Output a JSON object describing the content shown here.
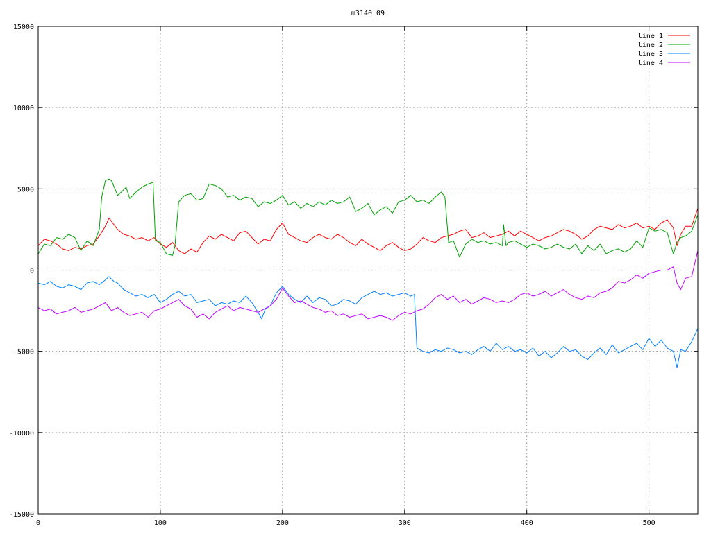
{
  "chart_data": {
    "type": "line",
    "title": "m3140_09",
    "xlabel": "",
    "ylabel": "",
    "xlim": [
      0,
      540
    ],
    "ylim": [
      -15000,
      15000
    ],
    "x_ticks": [
      0,
      100,
      200,
      300,
      400,
      500
    ],
    "y_ticks": [
      -15000,
      -10000,
      -5000,
      0,
      5000,
      10000,
      15000
    ],
    "x_tick_labels": [
      "0",
      "100",
      "200",
      "300",
      "400",
      "500"
    ],
    "y_tick_labels": [
      "-15000",
      "-10000",
      "-5000",
      "0",
      "5000",
      "10000",
      "15000"
    ],
    "grid": true,
    "legend_position": "top-right",
    "series": [
      {
        "name": "line 1",
        "color": "#ff0000",
        "x": [
          0,
          5,
          10,
          15,
          20,
          25,
          30,
          35,
          40,
          45,
          50,
          55,
          58,
          62,
          65,
          70,
          75,
          80,
          85,
          90,
          95,
          100,
          105,
          110,
          115,
          120,
          125,
          130,
          135,
          140,
          145,
          150,
          155,
          160,
          165,
          170,
          175,
          180,
          185,
          190,
          195,
          200,
          205,
          210,
          215,
          220,
          225,
          230,
          235,
          240,
          245,
          250,
          255,
          260,
          265,
          270,
          275,
          280,
          285,
          290,
          295,
          300,
          305,
          310,
          315,
          320,
          325,
          330,
          335,
          340,
          345,
          350,
          355,
          360,
          365,
          370,
          375,
          380,
          385,
          390,
          395,
          400,
          405,
          410,
          415,
          420,
          425,
          430,
          435,
          440,
          445,
          450,
          455,
          460,
          465,
          470,
          475,
          480,
          485,
          490,
          495,
          500,
          505,
          510,
          515,
          520,
          523,
          526,
          530,
          535,
          540
        ],
        "y": [
          1500,
          1900,
          1800,
          1600,
          1300,
          1200,
          1400,
          1300,
          1500,
          1600,
          2100,
          2700,
          3200,
          2800,
          2500,
          2200,
          2100,
          1900,
          2000,
          1800,
          2000,
          1600,
          1400,
          1700,
          1200,
          1000,
          1300,
          1100,
          1700,
          2100,
          1900,
          2200,
          2000,
          1800,
          2300,
          2400,
          2000,
          1600,
          1900,
          1800,
          2500,
          2900,
          2200,
          2000,
          1800,
          1700,
          2000,
          2200,
          2000,
          1900,
          2200,
          2000,
          1700,
          1500,
          1900,
          1600,
          1400,
          1200,
          1500,
          1700,
          1400,
          1200,
          1300,
          1600,
          2000,
          1800,
          1700,
          2000,
          2100,
          2200,
          2400,
          2500,
          2000,
          2100,
          2300,
          2000,
          2100,
          2200,
          2400,
          2100,
          2400,
          2200,
          2000,
          1800,
          2000,
          2100,
          2300,
          2500,
          2400,
          2200,
          1900,
          2100,
          2500,
          2700,
          2600,
          2500,
          2800,
          2600,
          2700,
          2900,
          2600,
          2700,
          2500,
          2900,
          3100,
          2600,
          1500,
          2200,
          2700,
          2700,
          3800
        ]
      },
      {
        "name": "line 2",
        "color": "#00a000",
        "x": [
          0,
          5,
          10,
          15,
          20,
          25,
          30,
          35,
          40,
          45,
          50,
          52,
          55,
          58,
          60,
          65,
          68,
          72,
          75,
          80,
          85,
          90,
          94,
          96,
          100,
          105,
          110,
          112,
          115,
          120,
          125,
          130,
          135,
          140,
          145,
          150,
          155,
          160,
          165,
          170,
          175,
          180,
          185,
          190,
          195,
          200,
          205,
          210,
          215,
          220,
          225,
          230,
          235,
          240,
          245,
          250,
          255,
          260,
          265,
          270,
          275,
          280,
          285,
          290,
          295,
          300,
          305,
          310,
          315,
          320,
          325,
          330,
          333,
          336,
          340,
          345,
          350,
          355,
          360,
          365,
          370,
          375,
          380,
          381,
          383,
          385,
          390,
          395,
          400,
          405,
          410,
          415,
          420,
          425,
          430,
          435,
          440,
          445,
          450,
          455,
          460,
          465,
          470,
          475,
          480,
          485,
          490,
          495,
          500,
          505,
          510,
          515,
          520,
          523,
          526,
          530,
          535,
          540
        ],
        "y": [
          1000,
          1600,
          1500,
          2000,
          1900,
          2200,
          2000,
          1200,
          1800,
          1500,
          2500,
          4500,
          5500,
          5600,
          5500,
          4600,
          4800,
          5100,
          4400,
          4800,
          5100,
          5300,
          5400,
          1800,
          1700,
          1000,
          900,
          1500,
          4200,
          4600,
          4700,
          4300,
          4400,
          5300,
          5200,
          5000,
          4500,
          4600,
          4300,
          4500,
          4400,
          3900,
          4200,
          4100,
          4300,
          4600,
          4000,
          4200,
          3800,
          4100,
          3900,
          4200,
          4000,
          4300,
          4100,
          4200,
          4500,
          3600,
          3800,
          4100,
          3400,
          3700,
          3900,
          3500,
          4200,
          4300,
          4600,
          4200,
          4300,
          4100,
          4500,
          4800,
          4500,
          1700,
          1800,
          800,
          1600,
          1900,
          1700,
          1800,
          1600,
          1700,
          1500,
          2800,
          1500,
          1700,
          1800,
          1600,
          1400,
          1600,
          1500,
          1300,
          1400,
          1600,
          1400,
          1300,
          1600,
          1000,
          1500,
          1200,
          1600,
          1000,
          1200,
          1300,
          1100,
          1300,
          1800,
          1400,
          2600,
          2400,
          2500,
          2300,
          1000,
          1700,
          2000,
          2100,
          2400,
          3400
        ]
      },
      {
        "name": "line 3",
        "color": "#0080ff",
        "x": [
          0,
          5,
          10,
          15,
          20,
          25,
          30,
          35,
          40,
          45,
          50,
          55,
          58,
          62,
          65,
          70,
          75,
          80,
          85,
          90,
          95,
          100,
          105,
          110,
          115,
          120,
          125,
          130,
          135,
          140,
          145,
          150,
          155,
          160,
          165,
          170,
          175,
          180,
          183,
          186,
          190,
          195,
          200,
          205,
          210,
          215,
          220,
          225,
          230,
          235,
          240,
          245,
          250,
          255,
          260,
          265,
          270,
          275,
          280,
          285,
          290,
          295,
          300,
          305,
          308,
          310,
          315,
          320,
          325,
          330,
          335,
          340,
          345,
          350,
          355,
          360,
          365,
          370,
          375,
          380,
          385,
          390,
          395,
          400,
          405,
          410,
          415,
          420,
          425,
          430,
          435,
          440,
          445,
          450,
          455,
          460,
          465,
          470,
          475,
          480,
          485,
          490,
          495,
          500,
          505,
          510,
          515,
          520,
          523,
          526,
          530,
          535,
          540
        ],
        "y": [
          -800,
          -900,
          -700,
          -1000,
          -1100,
          -900,
          -1000,
          -1200,
          -800,
          -700,
          -900,
          -600,
          -400,
          -700,
          -800,
          -1200,
          -1400,
          -1600,
          -1500,
          -1700,
          -1500,
          -2000,
          -1800,
          -1500,
          -1300,
          -1600,
          -1500,
          -2000,
          -1900,
          -1800,
          -2200,
          -2000,
          -2100,
          -1900,
          -2000,
          -1600,
          -2000,
          -2600,
          -3000,
          -2400,
          -2200,
          -1400,
          -1000,
          -1500,
          -1800,
          -2000,
          -1600,
          -2000,
          -1700,
          -1800,
          -2200,
          -2100,
          -1800,
          -1900,
          -2100,
          -1700,
          -1500,
          -1300,
          -1500,
          -1400,
          -1600,
          -1500,
          -1400,
          -1600,
          -1500,
          -4800,
          -5000,
          -5100,
          -4900,
          -5000,
          -4800,
          -4900,
          -5100,
          -5000,
          -5200,
          -4900,
          -4700,
          -5000,
          -4500,
          -4900,
          -4700,
          -5000,
          -4900,
          -5100,
          -4800,
          -5300,
          -5000,
          -5400,
          -5100,
          -4700,
          -5000,
          -4900,
          -5300,
          -5500,
          -5100,
          -4800,
          -5200,
          -4600,
          -5100,
          -4900,
          -4700,
          -4500,
          -4900,
          -4200,
          -4700,
          -4300,
          -4800,
          -5000,
          -6000,
          -4900,
          -5000,
          -4400,
          -3600
        ]
      },
      {
        "name": "line 4",
        "color": "#c000ff",
        "x": [
          0,
          5,
          10,
          15,
          20,
          25,
          30,
          35,
          40,
          45,
          50,
          55,
          60,
          65,
          70,
          75,
          80,
          85,
          90,
          95,
          100,
          105,
          110,
          115,
          120,
          125,
          130,
          135,
          140,
          145,
          150,
          155,
          160,
          165,
          170,
          175,
          180,
          185,
          190,
          195,
          200,
          205,
          210,
          215,
          220,
          225,
          230,
          235,
          240,
          245,
          250,
          255,
          260,
          265,
          270,
          275,
          280,
          285,
          290,
          295,
          300,
          305,
          310,
          315,
          320,
          325,
          330,
          335,
          340,
          345,
          350,
          355,
          360,
          365,
          370,
          375,
          380,
          385,
          390,
          395,
          400,
          405,
          410,
          415,
          420,
          425,
          430,
          435,
          440,
          445,
          450,
          455,
          460,
          465,
          470,
          475,
          480,
          485,
          490,
          495,
          500,
          505,
          510,
          515,
          520,
          523,
          526,
          530,
          535,
          540
        ],
        "y": [
          -2300,
          -2500,
          -2400,
          -2700,
          -2600,
          -2500,
          -2300,
          -2600,
          -2500,
          -2400,
          -2200,
          -2000,
          -2500,
          -2300,
          -2600,
          -2800,
          -2700,
          -2600,
          -2900,
          -2500,
          -2400,
          -2200,
          -2000,
          -1800,
          -2200,
          -2400,
          -2900,
          -2700,
          -3000,
          -2600,
          -2400,
          -2200,
          -2500,
          -2300,
          -2400,
          -2500,
          -2600,
          -2400,
          -2200,
          -1800,
          -1100,
          -1600,
          -2000,
          -1900,
          -2100,
          -2300,
          -2400,
          -2600,
          -2500,
          -2800,
          -2700,
          -2900,
          -2800,
          -2700,
          -3000,
          -2900,
          -2800,
          -2900,
          -3100,
          -2800,
          -2600,
          -2700,
          -2500,
          -2400,
          -2100,
          -1700,
          -1500,
          -1800,
          -1600,
          -2000,
          -1800,
          -2100,
          -1900,
          -1700,
          -1800,
          -2000,
          -1900,
          -2000,
          -1800,
          -1500,
          -1400,
          -1600,
          -1500,
          -1300,
          -1600,
          -1400,
          -1200,
          -1500,
          -1700,
          -1800,
          -1600,
          -1700,
          -1400,
          -1300,
          -1100,
          -700,
          -800,
          -600,
          -300,
          -500,
          -200,
          -100,
          0,
          0,
          200,
          -800,
          -1200,
          -500,
          -400,
          1200
        ]
      }
    ]
  }
}
